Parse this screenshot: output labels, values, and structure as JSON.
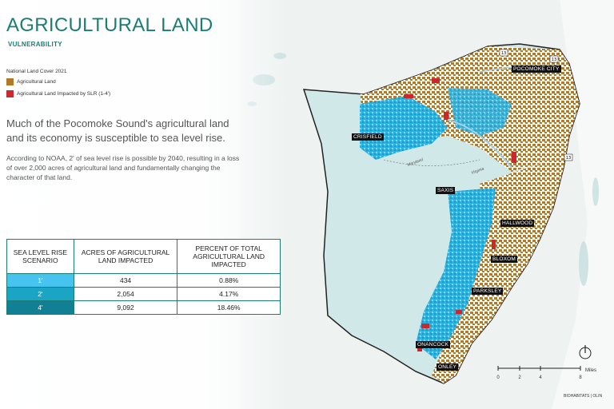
{
  "header": {
    "title": "AGRICULTURAL LAND",
    "subtitle": "VULNERABILITY"
  },
  "legend": {
    "title": "National Land Cover 2021",
    "items": [
      {
        "label": "Agricultural Land",
        "color": "#b07a2a"
      },
      {
        "label": "Agricultural Land Impacted by SLR (1-4')",
        "color": "#c8282e"
      }
    ]
  },
  "text": {
    "headline": "Much of the Pocomoke Sound's agricultural land and its economy is susceptible to sea level rise.",
    "body": "According to NOAA, 2' of sea level rise is possible by 2040, resulting in a loss of over 2,000 acres of agricultural land and fundamentally changing the character of that land."
  },
  "table": {
    "headers": [
      "SEA LEVEL RISE SCENARIO",
      "ACRES OF AGRICULTURAL LAND IMPACTED",
      "PERCENT OF TOTAL AGRICULTURAL LAND IMPACTED"
    ],
    "rows": [
      {
        "scenario": "1'",
        "acres": "434",
        "percent": "0.88%",
        "color": "#46c3ef"
      },
      {
        "scenario": "2'",
        "acres": "2,054",
        "percent": "4.17%",
        "color": "#1aa5c5"
      },
      {
        "scenario": "4'",
        "acres": "9,092",
        "percent": "18.46%",
        "color": "#117f94"
      }
    ]
  },
  "map": {
    "colors": {
      "water": "#d0e8e8",
      "land": "#ffffff",
      "agriculture": "#b07a2a",
      "impacted": "#c8282e",
      "slr": "#2bb3e0"
    },
    "town_labels": {
      "pocomoke_city": "POCOMOKE CITY",
      "crisfield": "CRISFIELD",
      "saxis": "SAXIS",
      "hallwood": "HALLWOOD",
      "bloxom": "BLOXOM",
      "parksley": "PARKSLEY",
      "onancock": "ONANCOCK",
      "onley": "ONLEY"
    },
    "water_labels": {
      "maryland": "Maryland",
      "virginia": "Virginia"
    },
    "route_shields": [
      "13",
      "13",
      "13"
    ]
  },
  "scale": {
    "ticks": [
      "0",
      "2",
      "4",
      "8"
    ],
    "unit": "Miles"
  },
  "credit": "BIOHABITATS | OLIN"
}
